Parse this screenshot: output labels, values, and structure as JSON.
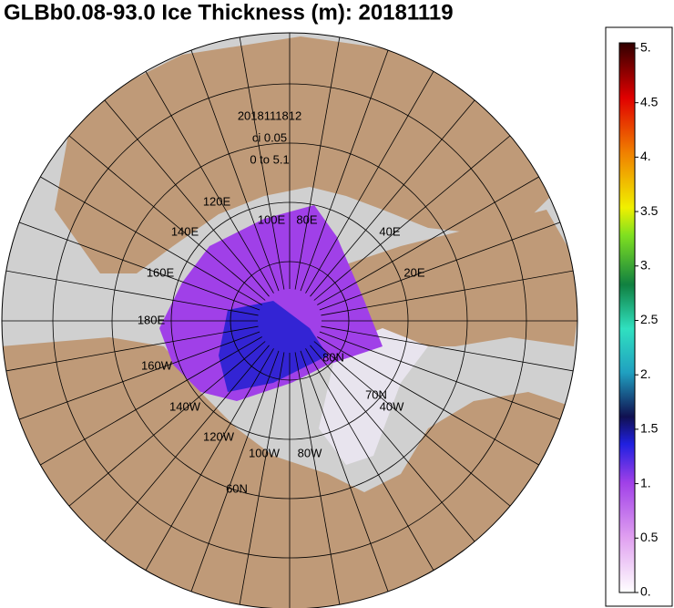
{
  "title": "GLBb0.08-93.0 Ice Thickness (m): 20181119",
  "annotations": [
    "2018111812",
    "ci 0.05",
    "0 to 5.1"
  ],
  "map_labels": [
    "120E",
    "140E",
    "100E",
    "80E",
    "40E",
    "160E",
    "20E",
    "180E",
    "80N",
    "160W",
    "70N",
    "40W",
    "140W",
    "120W",
    "100W",
    "80W",
    "60N"
  ],
  "colorbar": {
    "lim": [
      0,
      5.05
    ],
    "ticks": [
      {
        "value": 0,
        "label": "0."
      },
      {
        "value": 0.5,
        "label": "0.5"
      },
      {
        "value": 1,
        "label": "1."
      },
      {
        "value": 1.5,
        "label": "1.5"
      },
      {
        "value": 2,
        "label": "2."
      },
      {
        "value": 2.5,
        "label": "2.5"
      },
      {
        "value": 3,
        "label": "3."
      },
      {
        "value": 3.5,
        "label": "3.5"
      },
      {
        "value": 4,
        "label": "4."
      },
      {
        "value": 4.5,
        "label": "4.5"
      },
      {
        "value": 5,
        "label": "5."
      }
    ]
  }
}
